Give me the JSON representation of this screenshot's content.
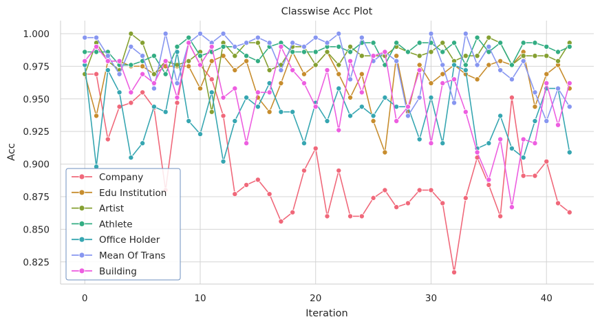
{
  "chart_data": {
    "type": "line",
    "title": "Classwise Acc Plot",
    "xlabel": "Iteration",
    "ylabel": "Acc",
    "xlim": [
      -2.1,
      44.1
    ],
    "ylim": [
      0.808,
      1.01
    ],
    "xticks": [
      0,
      10,
      20,
      30,
      40
    ],
    "xtick_labels": [
      "0",
      "10",
      "20",
      "30",
      "40"
    ],
    "yticks": [
      0.825,
      0.85,
      0.875,
      0.9,
      0.925,
      0.95,
      0.975,
      1.0
    ],
    "ytick_labels": [
      "0.825",
      "0.850",
      "0.875",
      "0.900",
      "0.925",
      "0.950",
      "0.975",
      "1.000"
    ],
    "grid": true,
    "legend_position": "lower-left",
    "x": [
      0,
      1,
      2,
      3,
      4,
      5,
      6,
      7,
      8,
      9,
      10,
      11,
      12,
      13,
      14,
      15,
      16,
      17,
      18,
      19,
      20,
      21,
      22,
      23,
      24,
      25,
      26,
      27,
      28,
      29,
      30,
      31,
      32,
      33,
      34,
      35,
      36,
      37,
      38,
      39,
      40,
      41,
      42
    ],
    "series": [
      {
        "name": "Company",
        "color": "#f0687a",
        "values": [
          0.969,
          0.969,
          0.919,
          0.944,
          0.947,
          0.955,
          0.943,
          0.88,
          0.947,
          0.993,
          0.976,
          0.965,
          0.937,
          0.877,
          0.884,
          0.888,
          0.877,
          0.856,
          0.863,
          0.895,
          0.912,
          0.86,
          0.895,
          0.86,
          0.86,
          0.874,
          0.88,
          0.867,
          0.87,
          0.88,
          0.88,
          0.87,
          0.817,
          0.874,
          0.905,
          0.884,
          0.86,
          0.951,
          0.891,
          0.891,
          0.902,
          0.87,
          0.863
        ]
      },
      {
        "name": "Edu Institution",
        "color": "#c78d2e",
        "values": [
          0.969,
          0.937,
          0.979,
          0.979,
          0.975,
          0.975,
          0.969,
          0.975,
          0.975,
          0.975,
          0.958,
          0.979,
          0.983,
          0.972,
          0.979,
          0.951,
          0.94,
          0.962,
          0.986,
          0.969,
          0.976,
          0.986,
          0.969,
          0.951,
          0.969,
          0.933,
          0.909,
          0.983,
          0.94,
          0.976,
          0.962,
          0.969,
          0.976,
          0.969,
          0.965,
          0.976,
          0.979,
          0.976,
          0.986,
          0.944,
          0.969,
          0.976,
          0.958
        ]
      },
      {
        "name": "Artist",
        "color": "#85a032",
        "values": [
          0.969,
          0.993,
          0.979,
          0.972,
          1.0,
          0.993,
          0.969,
          0.979,
          0.976,
          0.979,
          0.986,
          0.94,
          0.993,
          0.983,
          0.993,
          0.993,
          0.972,
          0.976,
          0.99,
          0.99,
          0.976,
          0.986,
          0.976,
          0.99,
          0.983,
          0.983,
          0.983,
          0.99,
          0.986,
          0.983,
          0.986,
          0.993,
          0.979,
          0.983,
          0.983,
          0.997,
          0.993,
          0.976,
          0.983,
          0.983,
          0.983,
          0.979,
          0.993
        ]
      },
      {
        "name": "Athlete",
        "color": "#33ad83",
        "values": [
          0.986,
          0.986,
          0.986,
          0.976,
          0.976,
          0.979,
          0.983,
          0.969,
          0.99,
          0.997,
          0.983,
          0.986,
          0.99,
          0.99,
          0.983,
          0.979,
          0.99,
          0.993,
          0.986,
          0.986,
          0.986,
          0.99,
          0.99,
          0.986,
          0.993,
          0.993,
          0.976,
          0.993,
          0.986,
          0.993,
          0.993,
          0.986,
          0.993,
          0.976,
          0.997,
          0.986,
          0.993,
          0.976,
          0.993,
          0.993,
          0.99,
          0.986,
          0.99
        ]
      },
      {
        "name": "Office Holder",
        "color": "#36a6b1",
        "values": [
          0.976,
          0.898,
          0.972,
          0.955,
          0.905,
          0.916,
          0.944,
          0.94,
          0.986,
          0.933,
          0.923,
          0.955,
          0.902,
          0.933,
          0.951,
          0.944,
          0.962,
          0.94,
          0.94,
          0.916,
          0.947,
          0.933,
          0.958,
          0.937,
          0.944,
          0.937,
          0.951,
          0.944,
          0.944,
          0.919,
          0.951,
          0.916,
          0.976,
          0.972,
          0.912,
          0.916,
          0.937,
          0.912,
          0.905,
          0.933,
          0.958,
          0.958,
          0.909
        ]
      },
      {
        "name": "Mean Of Trans",
        "color": "#8796f0",
        "values": [
          0.997,
          0.997,
          0.983,
          0.969,
          0.99,
          0.983,
          0.958,
          1.0,
          0.962,
          0.993,
          1.0,
          0.993,
          1.0,
          0.99,
          0.993,
          0.997,
          0.993,
          0.972,
          0.993,
          0.99,
          0.997,
          0.993,
          1.0,
          0.965,
          0.997,
          0.979,
          0.986,
          0.979,
          0.937,
          0.951,
          1.0,
          0.976,
          0.947,
          1.0,
          0.976,
          0.99,
          0.972,
          0.965,
          0.979,
          0.955,
          0.933,
          0.958,
          0.944
        ]
      },
      {
        "name": "Building",
        "color": "#ed5ee0",
        "values": [
          0.979,
          0.99,
          0.979,
          0.979,
          0.955,
          0.969,
          0.962,
          0.979,
          0.951,
          0.993,
          0.976,
          0.99,
          0.951,
          0.958,
          0.916,
          0.955,
          0.955,
          0.99,
          0.972,
          0.962,
          0.944,
          0.972,
          0.926,
          0.979,
          0.955,
          0.983,
          0.986,
          0.933,
          0.944,
          0.972,
          0.916,
          0.962,
          0.965,
          0.94,
          0.909,
          0.888,
          0.919,
          0.867,
          0.919,
          0.916,
          0.962,
          0.93,
          0.962
        ]
      }
    ]
  }
}
